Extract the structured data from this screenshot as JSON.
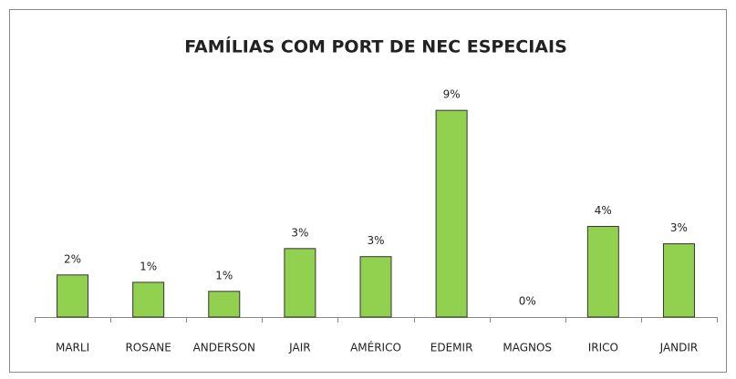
{
  "chart_data": {
    "type": "bar",
    "title": "FAMÍLIAS COM PORT DE NEC ESPECIAIS",
    "categories": [
      "MARLI",
      "ROSANE",
      "ANDERSON",
      "JAIR",
      "AMÉRICO",
      "EDEMIR",
      "MAGNOS",
      "IRICO",
      "JANDIR"
    ],
    "values": [
      1.77,
      1.46,
      1.08,
      2.88,
      2.54,
      8.69,
      0,
      3.81,
      3.08
    ],
    "value_labels": [
      "2%",
      "1%",
      "1%",
      "3%",
      "3%",
      "9%",
      "0%",
      "4%",
      "3%"
    ],
    "color": "#92d050",
    "ylim": [
      0,
      9.5
    ]
  }
}
